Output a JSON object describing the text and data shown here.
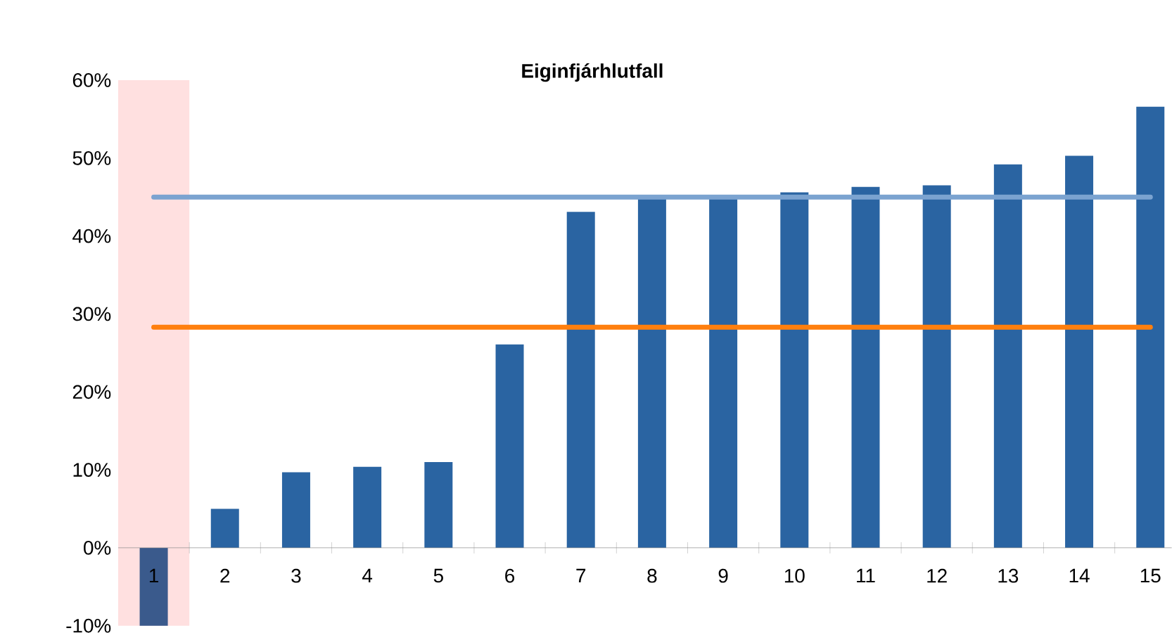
{
  "chart_data": {
    "type": "bar",
    "title": "Eiginfjárhlutfall",
    "categories": [
      "1",
      "2",
      "3",
      "4",
      "5",
      "6",
      "7",
      "8",
      "9",
      "10",
      "11",
      "12",
      "13",
      "14",
      "15"
    ],
    "values": [
      -10,
      5.0,
      9.7,
      10.4,
      11.0,
      26.1,
      43.1,
      45.0,
      45.0,
      45.6,
      46.3,
      46.5,
      49.2,
      50.3,
      56.6
    ],
    "colors": [
      "#3a5a8c",
      "#2a64a2",
      "#2a64a2",
      "#2a64a2",
      "#2a64a2",
      "#2a64a2",
      "#2a64a2",
      "#2a64a2",
      "#2a64a2",
      "#2a64a2",
      "#2a64a2",
      "#2a64a2",
      "#2a64a2",
      "#2a64a2",
      "#2a64a2"
    ],
    "ylim": [
      -10,
      60
    ],
    "yticks": [
      {
        "value": -10,
        "label": "-10%"
      },
      {
        "value": 0,
        "label": "0%"
      },
      {
        "value": 10,
        "label": "10%"
      },
      {
        "value": 20,
        "label": "20%"
      },
      {
        "value": 30,
        "label": "30%"
      },
      {
        "value": 40,
        "label": "40%"
      },
      {
        "value": 50,
        "label": "50%"
      },
      {
        "value": 60,
        "label": "60%"
      }
    ],
    "ref_lines": [
      {
        "axis": "y",
        "value": 45,
        "color": "#7ba3d0"
      },
      {
        "axis": "y",
        "value": 28.3,
        "color": "#ff7f0e"
      }
    ],
    "bands": [
      {
        "axis": "x",
        "from": "1",
        "to": "1",
        "color": "#ffe0e0"
      }
    ]
  }
}
